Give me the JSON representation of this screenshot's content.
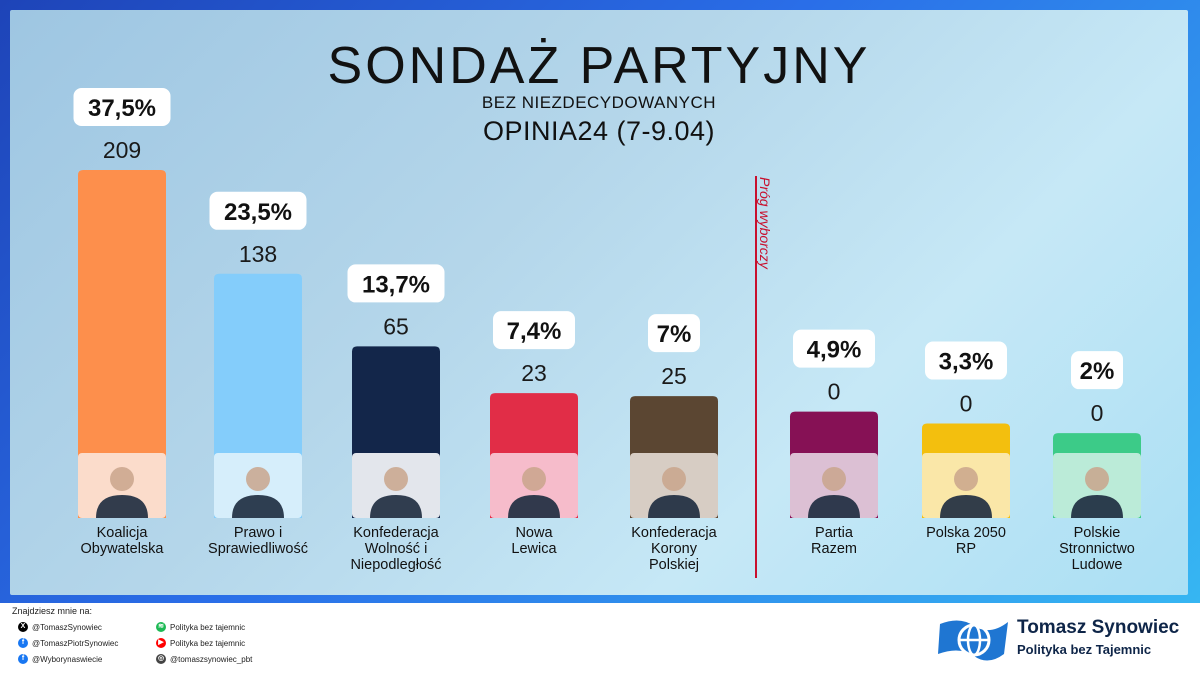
{
  "header": {
    "title": "SONDAŻ PARTYJNY",
    "subtitle": "BEZ NIEZDECYDOWANYCH",
    "source": "OPINIA24 (7-9.04)"
  },
  "chart_data": {
    "type": "bar",
    "title": "SONDAŻ PARTYJNY",
    "subtitle": "BEZ NIEZDECYDOWANYCH",
    "source": "OPINIA24 (7-9.04)",
    "categories": [
      "Koalicja Obywatelska",
      "Prawo i Sprawiedliwość",
      "Konfederacja Wolność i Niepodległość",
      "Nowa Lewica",
      "Konfederacja Korony Polskiej",
      "Partia Razem",
      "Polska 2050 RP",
      "Polskie Stronnictwo Ludowe"
    ],
    "category_lines": [
      [
        "Koalicja",
        "Obywatelska"
      ],
      [
        "Prawo i",
        "Sprawiedliwość"
      ],
      [
        "Konfederacja",
        "Wolność i",
        "Niepodległość"
      ],
      [
        "Nowa",
        "Lewica"
      ],
      [
        "Konfederacja",
        "Korony",
        "Polskiej"
      ],
      [
        "Partia",
        "Razem"
      ],
      [
        "Polska 2050",
        "RP"
      ],
      [
        "Polskie",
        "Stronnictwo",
        "Ludowe"
      ]
    ],
    "values": [
      37.5,
      23.5,
      13.7,
      7.4,
      7,
      4.9,
      3.3,
      2
    ],
    "value_labels": [
      "37,5%",
      "23,5%",
      "13,7%",
      "7,4%",
      "7%",
      "4,9%",
      "3,3%",
      "2%"
    ],
    "seats": [
      "209",
      "138",
      "65",
      "23",
      "25",
      "0",
      "0",
      "0"
    ],
    "colors": [
      "#fd8f4c",
      "#84cdfb",
      "#13264a",
      "#e12d47",
      "#5b4632",
      "#861155",
      "#f3bf0e",
      "#3ccb88"
    ],
    "photo_colors": [
      "#fbdccb",
      "#d6eefb",
      "#e3e6ec",
      "#f6bccb",
      "#d7cdc4",
      "#dcc0d4",
      "#fae7a8",
      "#bbebd8"
    ],
    "threshold": {
      "value": 5,
      "label": "Próg wyborczy",
      "color": "#c8102e"
    },
    "ylim": [
      0,
      37.5
    ]
  },
  "footer": {
    "heading": "Znajdziesz mnie na:",
    "links": [
      {
        "icon": "x-icon",
        "text": "@TomaszSynowiec",
        "color": "#000000"
      },
      {
        "icon": "facebook-icon",
        "text": "@TomaszPiotrSynowiec",
        "color": "#1877f2"
      },
      {
        "icon": "facebook-icon",
        "text": "@Wyborynaswiecie",
        "color": "#1877f2"
      },
      {
        "icon": "spotify-icon",
        "text": "Polityka bez tajemnic",
        "color": "#1db954"
      },
      {
        "icon": "youtube-icon",
        "text": "Polityka bez tajemnic",
        "color": "#ff0000"
      },
      {
        "icon": "instagram-icon",
        "text": "@tomaszsynowiec_pbt",
        "color": "#444444"
      }
    ],
    "brand_name": "Tomasz Synowiec",
    "brand_tagline": "Polityka bez Tajemnic",
    "brand_colors": {
      "navy": "#0e2548",
      "blue": "#1f76d2"
    }
  }
}
